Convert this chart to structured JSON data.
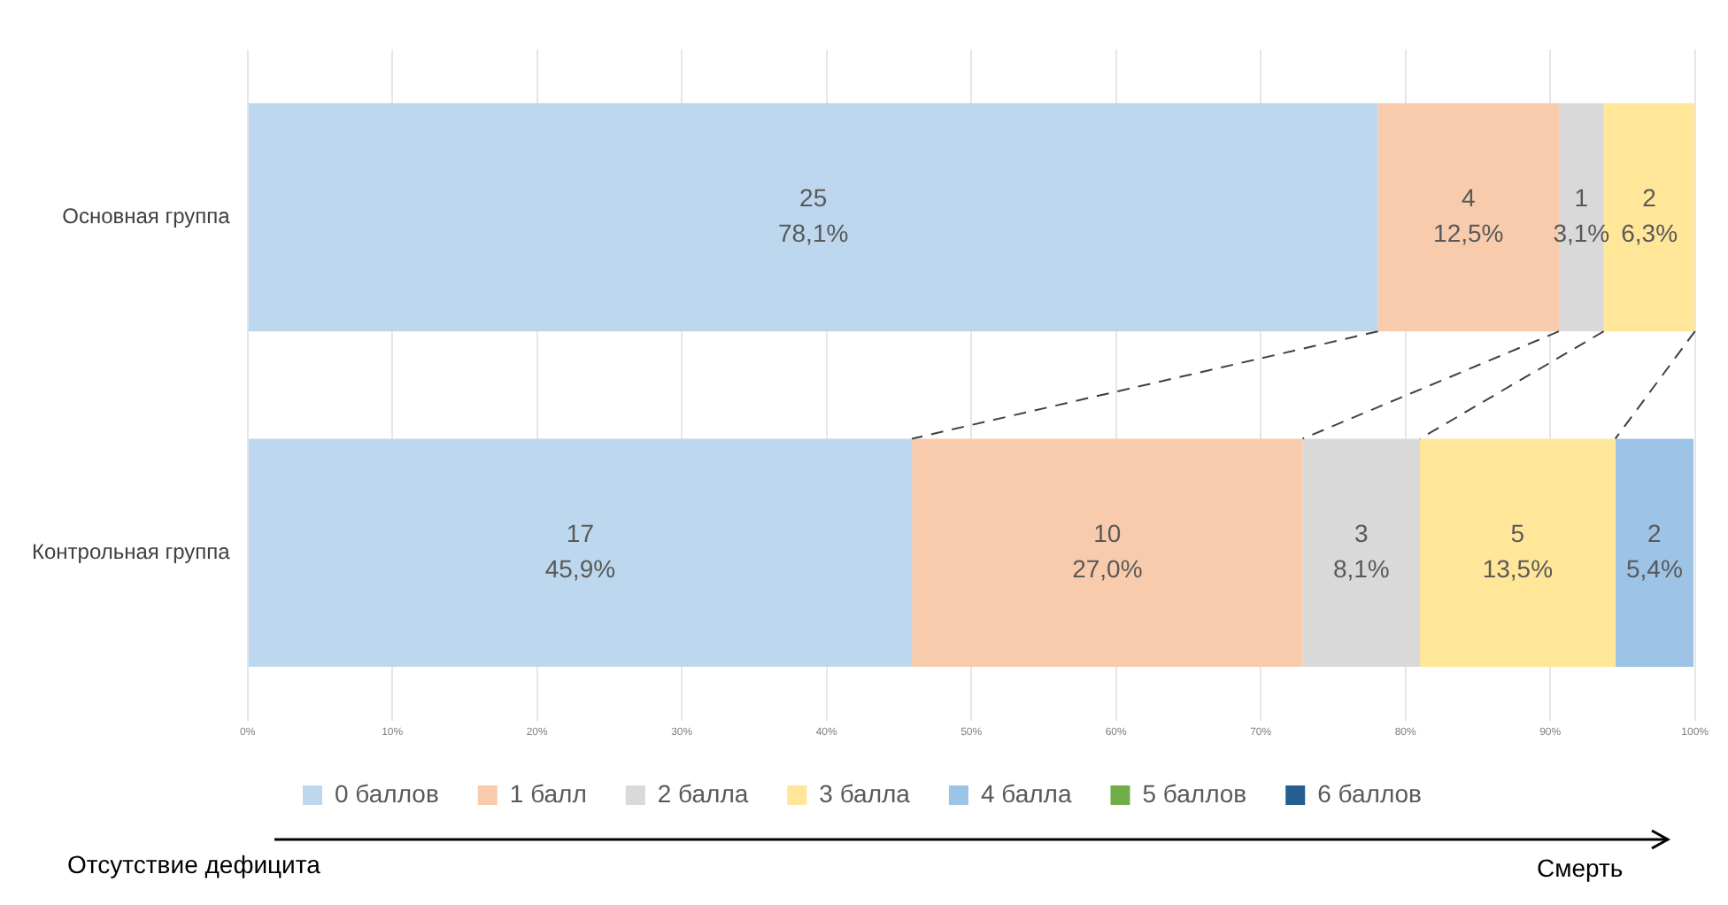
{
  "chart_data": {
    "type": "bar",
    "orientation": "horizontal",
    "stacked": true,
    "categories": [
      "Основная группа",
      "Контрольная группа"
    ],
    "series": [
      {
        "name": "0 баллов",
        "color": "#bdd7ee",
        "values": [
          78.1,
          45.9
        ],
        "value_labels": [
          "25\n78,1%",
          "17\n45,9%"
        ]
      },
      {
        "name": "1 балл",
        "color": "#f8cbad",
        "values": [
          12.5,
          27.0
        ],
        "value_labels": [
          "4\n12,5%",
          "10\n27,0%"
        ]
      },
      {
        "name": "2 балла",
        "color": "#d9d9d9",
        "values": [
          3.1,
          8.1
        ],
        "value_labels": [
          "1\n3,1%",
          "3\n8,1%"
        ]
      },
      {
        "name": "3 балла",
        "color": "#ffe699",
        "values": [
          6.3,
          13.5
        ],
        "value_labels": [
          "2\n6,3%",
          "5\n13,5%"
        ]
      },
      {
        "name": "4 балла",
        "color": "#9dc3e6",
        "values": [
          null,
          5.4
        ],
        "value_labels": [
          null,
          "2\n5,4%"
        ]
      },
      {
        "name": "5 баллов",
        "color": "#70ad47",
        "values": [
          null,
          null
        ],
        "value_labels": [
          null,
          null
        ]
      },
      {
        "name": "6 баллов",
        "color": "#255e91",
        "values": [
          null,
          null
        ],
        "value_labels": [
          null,
          null
        ]
      }
    ],
    "xlim": [
      0,
      100
    ],
    "xticks": [
      {
        "value": 0,
        "label": "0%"
      },
      {
        "value": 10,
        "label": "10%"
      },
      {
        "value": 20,
        "label": "20%"
      },
      {
        "value": 30,
        "label": "30%"
      },
      {
        "value": 40,
        "label": "40%"
      },
      {
        "value": 50,
        "label": "50%"
      },
      {
        "value": 60,
        "label": "60%"
      },
      {
        "value": 70,
        "label": "70%"
      },
      {
        "value": 80,
        "label": "80%"
      },
      {
        "value": 90,
        "label": "90%"
      },
      {
        "value": 100,
        "label": "100%"
      }
    ],
    "grid": "x",
    "legend": "bottom",
    "annotations": [
      "Отсутствие дефицита",
      "Смерть"
    ]
  }
}
